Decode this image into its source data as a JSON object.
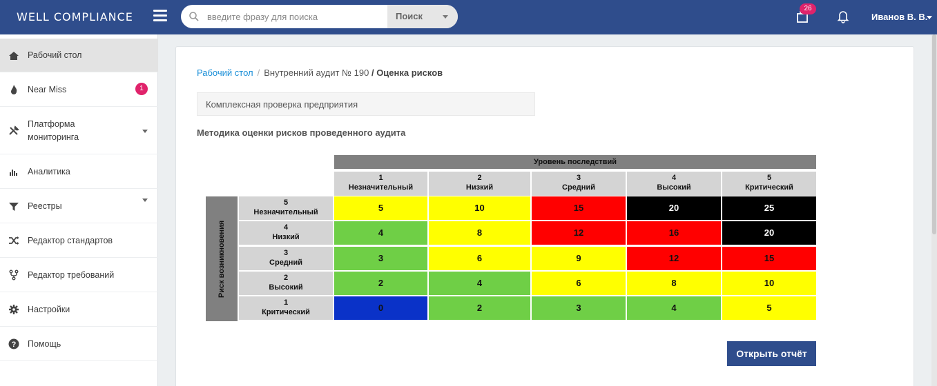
{
  "header": {
    "brand": "WELL COMPLIANCE",
    "search_placeholder": "введите фразу для поиска",
    "search_button": "Поиск",
    "cart_count": "26",
    "user_name": "Иванов В. В."
  },
  "sidebar": {
    "items": [
      {
        "label": "Рабочий стол",
        "icon": "home-icon",
        "active": true
      },
      {
        "label": "Near Miss",
        "icon": "flame-icon",
        "badge": "1"
      },
      {
        "label": "Платформа мониторинга",
        "label_line1": "Платформа",
        "label_line2": "мониторинга",
        "icon": "tools-icon",
        "expandable": true
      },
      {
        "label": "Аналитика",
        "icon": "bar-chart-icon"
      },
      {
        "label": "Реестры",
        "icon": "filter-icon",
        "expandable": true
      },
      {
        "label": "Редактор стандартов",
        "icon": "shuffle-icon"
      },
      {
        "label": "Редактор требований",
        "icon": "fork-icon"
      },
      {
        "label": "Настройки",
        "icon": "gear-icon"
      },
      {
        "label": "Помощь",
        "icon": "help-icon"
      }
    ]
  },
  "breadcrumb": {
    "home": "Рабочий стол",
    "audit": "Внутренний аудит № 190",
    "current": "Оценка рисков",
    "current_sep": "/"
  },
  "audit_name": "Комплексная проверка предприятия",
  "section_title": "Методика оценки рисков проведенного аудита",
  "matrix": {
    "header": "Уровень последствий",
    "side_label": "Риск возникновения",
    "columns": [
      {
        "num": "1",
        "name": "Незначительный"
      },
      {
        "num": "2",
        "name": "Низкий"
      },
      {
        "num": "3",
        "name": "Средний"
      },
      {
        "num": "4",
        "name": "Высокий"
      },
      {
        "num": "5",
        "name": "Критический"
      }
    ],
    "rows": [
      {
        "num": "5",
        "name": "Незначительный",
        "cells": [
          "5",
          "10",
          "15",
          "20",
          "25"
        ],
        "colors": [
          "#ffff00",
          "#ffff00",
          "#ff0000",
          "#000000",
          "#000000"
        ]
      },
      {
        "num": "4",
        "name": "Низкий",
        "cells": [
          "4",
          "8",
          "12",
          "16",
          "20"
        ],
        "colors": [
          "#6fcf46",
          "#ffff00",
          "#ff0000",
          "#ff0000",
          "#000000"
        ]
      },
      {
        "num": "3",
        "name": "Средний",
        "cells": [
          "3",
          "6",
          "9",
          "12",
          "15"
        ],
        "colors": [
          "#6fcf46",
          "#ffff00",
          "#ffff00",
          "#ff0000",
          "#ff0000"
        ]
      },
      {
        "num": "2",
        "name": "Высокий",
        "cells": [
          "2",
          "4",
          "6",
          "8",
          "10"
        ],
        "colors": [
          "#6fcf46",
          "#6fcf46",
          "#ffff00",
          "#ffff00",
          "#ffff00"
        ]
      },
      {
        "num": "1",
        "name": "Критический",
        "cells": [
          "0",
          "2",
          "3",
          "4",
          "5"
        ],
        "colors": [
          "#0a32c8",
          "#6fcf46",
          "#6fcf46",
          "#6fcf46",
          "#ffff00"
        ]
      }
    ]
  },
  "open_report_button": "Открыть отчёт",
  "colors": {
    "brand": "#2f4d8c",
    "badge": "#e0236b",
    "link": "#1a8fd8"
  }
}
